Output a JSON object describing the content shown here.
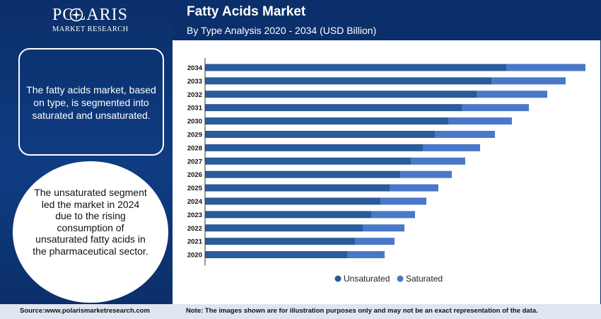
{
  "brand": {
    "name": "POLARIS",
    "tagline": "MARKET RESEARCH"
  },
  "header": {
    "title": "Fatty Acids Market",
    "subtitle": "By Type Analysis 2020 - 2034 (USD Billion)"
  },
  "sidebar": {
    "box_text": "The fatty acids market, based on type, is segmented into saturated and unsaturated.",
    "circle_text": "The unsaturated segment led the market in 2024 due to the rising consumption of unsaturated fatty acids in the pharmaceutical sector."
  },
  "footer": {
    "source": "Source:www.polarismarketresearch.com",
    "note": "Note: The images shown are for illustration purposes only and may not be an exact representation of the data."
  },
  "colors": {
    "navy": "#0b2f6a",
    "unsaturated": "#2a5b9a",
    "saturated": "#4a78c8"
  },
  "chart_data": {
    "type": "bar",
    "orientation": "horizontal",
    "stacked": true,
    "categories": [
      "2034",
      "2033",
      "2032",
      "2031",
      "2030",
      "2029",
      "2028",
      "2027",
      "2026",
      "2025",
      "2024",
      "2023",
      "2022",
      "2021",
      "2020"
    ],
    "series": [
      {
        "name": "Unsaturated",
        "values": [
          42.6,
          40.5,
          38.4,
          36.3,
          34.4,
          32.5,
          30.8,
          29.1,
          27.6,
          26.1,
          24.8,
          23.5,
          22.3,
          21.2,
          20.1
        ]
      },
      {
        "name": "Saturated",
        "values": [
          11.2,
          10.5,
          10.0,
          9.5,
          9.0,
          8.5,
          8.1,
          7.7,
          7.3,
          6.9,
          6.5,
          6.2,
          5.9,
          5.6,
          5.3
        ]
      }
    ],
    "xlim": [
      0,
      54
    ],
    "legend_position": "bottom",
    "grid": false
  }
}
